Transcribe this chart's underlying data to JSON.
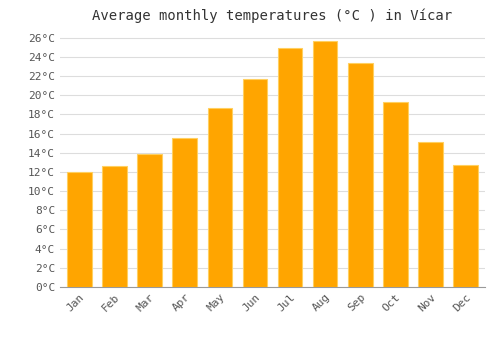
{
  "title": "Average monthly temperatures (°C ) in Vícar",
  "months": [
    "Jan",
    "Feb",
    "Mar",
    "Apr",
    "May",
    "Jun",
    "Jul",
    "Aug",
    "Sep",
    "Oct",
    "Nov",
    "Dec"
  ],
  "values": [
    12.0,
    12.6,
    13.9,
    15.5,
    18.7,
    21.7,
    24.9,
    25.6,
    23.3,
    19.3,
    15.1,
    12.7
  ],
  "bar_color": "#FFA500",
  "bar_edge_color": "#FFD060",
  "background_color": "#FFFFFF",
  "grid_color": "#DDDDDD",
  "text_color": "#555555",
  "ylim": [
    0,
    27
  ],
  "ytick_step": 2,
  "title_fontsize": 10,
  "tick_fontsize": 8,
  "font_family": "monospace"
}
